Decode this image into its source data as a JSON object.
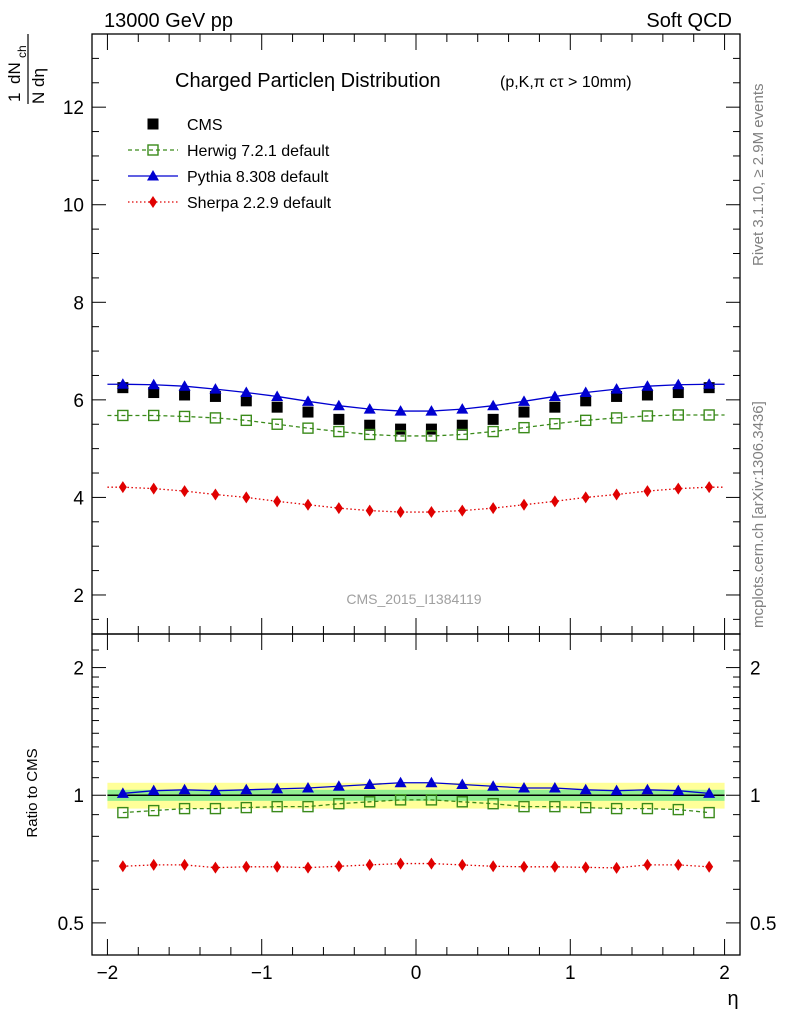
{
  "header": {
    "energy_label": "13000 GeV pp",
    "category_label": "Soft QCD",
    "side_rivet": "Rivet 3.1.10, ≥ 2.9M events",
    "side_mcplots": "mcplots.cern.ch [arXiv:1306.3436]",
    "analysis_id": "CMS_2015_I1384119"
  },
  "colors": {
    "cms": "#000000",
    "herwig": "#3a8a1a",
    "pythia": "#0000d0",
    "sherpa": "#e00000",
    "band_green": "#90ee90",
    "band_yellow": "#ffff99"
  },
  "chart_data": [
    {
      "type": "scatter",
      "title": "Charged Particleη Distribution",
      "subtitle": "(p,K,π cτ > 10mm)",
      "xlabel": "η",
      "ylabel_num": "dN",
      "ylabel_num_sub": "ch",
      "ylabel_den": "N dη",
      "ylabel_prefix": "1",
      "xlim": [
        -2.1,
        2.1
      ],
      "ylim": [
        1.2,
        13.5
      ],
      "yticks": [
        2,
        4,
        6,
        8,
        10,
        12
      ],
      "ytick_labels": [
        "2",
        "4",
        "6",
        "8",
        "10",
        "12"
      ],
      "x": [
        -1.9,
        -1.7,
        -1.5,
        -1.3,
        -1.1,
        -0.9,
        -0.7,
        -0.5,
        -0.3,
        -0.1,
        0.1,
        0.3,
        0.5,
        0.7,
        0.9,
        1.1,
        1.3,
        1.5,
        1.7,
        1.9
      ],
      "series": [
        {
          "name": "CMS",
          "values": [
            6.25,
            6.15,
            6.1,
            6.07,
            5.98,
            5.85,
            5.75,
            5.6,
            5.48,
            5.4,
            5.4,
            5.48,
            5.6,
            5.75,
            5.85,
            5.98,
            6.07,
            6.1,
            6.15,
            6.25
          ]
        },
        {
          "name": "Herwig 7.2.1 default",
          "values": [
            5.68,
            5.68,
            5.66,
            5.63,
            5.58,
            5.5,
            5.42,
            5.35,
            5.29,
            5.26,
            5.26,
            5.29,
            5.35,
            5.43,
            5.51,
            5.58,
            5.63,
            5.67,
            5.69,
            5.69
          ]
        },
        {
          "name": "Pythia 8.308 default",
          "values": [
            6.32,
            6.31,
            6.28,
            6.22,
            6.15,
            6.07,
            5.97,
            5.88,
            5.81,
            5.77,
            5.77,
            5.81,
            5.88,
            5.97,
            6.07,
            6.15,
            6.22,
            6.28,
            6.31,
            6.32
          ]
        },
        {
          "name": "Sherpa 2.2.9 default",
          "values": [
            4.21,
            4.18,
            4.13,
            4.06,
            4.0,
            3.92,
            3.85,
            3.78,
            3.73,
            3.7,
            3.7,
            3.73,
            3.78,
            3.85,
            3.92,
            4.0,
            4.06,
            4.13,
            4.18,
            4.21
          ]
        }
      ]
    },
    {
      "type": "line",
      "ylabel": "Ratio to CMS",
      "xlabel": "η",
      "xlim": [
        -2.1,
        2.1
      ],
      "ylim": [
        0.42,
        2.4
      ],
      "xticks": [
        -2,
        -1,
        0,
        1,
        2
      ],
      "xtick_labels": [
        "−2",
        "−1",
        "0",
        "1",
        "2"
      ],
      "yticks": [
        0.5,
        1,
        2
      ],
      "ytick_labels": [
        "0.5",
        "1",
        "2"
      ],
      "x": [
        -1.9,
        -1.7,
        -1.5,
        -1.3,
        -1.1,
        -0.9,
        -0.7,
        -0.5,
        -0.3,
        -0.1,
        0.1,
        0.3,
        0.5,
        0.7,
        0.9,
        1.1,
        1.3,
        1.5,
        1.7,
        1.9
      ],
      "band_green": 0.03,
      "band_yellow": 0.07,
      "series": [
        {
          "name": "Herwig 7.2.1 default",
          "values": [
            0.91,
            0.92,
            0.93,
            0.93,
            0.935,
            0.94,
            0.94,
            0.955,
            0.965,
            0.975,
            0.975,
            0.965,
            0.955,
            0.94,
            0.94,
            0.935,
            0.93,
            0.93,
            0.925,
            0.91
          ]
        },
        {
          "name": "Pythia 8.308 default",
          "values": [
            1.01,
            1.025,
            1.03,
            1.025,
            1.03,
            1.035,
            1.04,
            1.05,
            1.06,
            1.07,
            1.07,
            1.06,
            1.05,
            1.04,
            1.04,
            1.03,
            1.025,
            1.03,
            1.025,
            1.01
          ]
        },
        {
          "name": "Sherpa 2.2.9 default",
          "values": [
            0.68,
            0.685,
            0.685,
            0.675,
            0.678,
            0.678,
            0.675,
            0.68,
            0.685,
            0.69,
            0.69,
            0.685,
            0.68,
            0.678,
            0.678,
            0.676,
            0.674,
            0.685,
            0.685,
            0.678
          ]
        }
      ]
    }
  ]
}
